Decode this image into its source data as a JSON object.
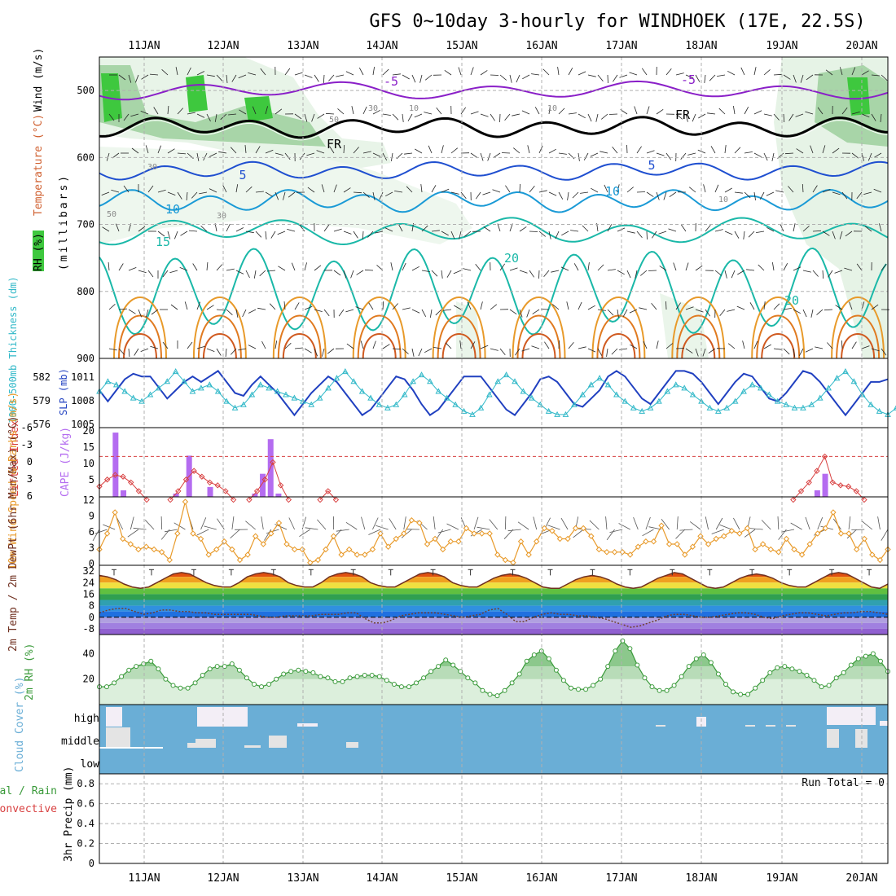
{
  "title": "GFS 0~10day 3-hourly for WINDHOEK (17E, 22.5S)",
  "dates": [
    "11JAN",
    "12JAN",
    "13JAN",
    "14JAN",
    "15JAN",
    "16JAN",
    "17JAN",
    "18JAN",
    "19JAN",
    "20JAN"
  ],
  "colors": {
    "grid": "#b0b0b0",
    "rh_green": "#3ec83e",
    "temp_purple": "#8a1fc8",
    "temp_blue": "#1f4fd0",
    "temp_lightblue": "#1a9ad6",
    "temp_teal": "#1ab8a8",
    "temp_orange": "#e89a2a",
    "cloud_blue": "#6aaed6",
    "cape_purple": "#b46cf0",
    "li_red": "#d84040",
    "wind_orange": "#e89a2a",
    "rh2m_green": "#3a9a3a"
  },
  "chart_data": [
    {
      "panel": "upper-air",
      "type": "contour",
      "ylabel_parts": [
        "RH (%)",
        "Temperature (°C)",
        "Wind (m/s)"
      ],
      "yunit": "(millibars)",
      "y_ticks": [
        500,
        600,
        700,
        800,
        900
      ],
      "ylim": [
        450,
        900
      ],
      "contour_labels": [
        "-5",
        "-5",
        "FR",
        "FR",
        "5",
        "5",
        "10",
        "10",
        "15",
        "20",
        "20",
        "30",
        "30",
        "30",
        "10",
        "10",
        "10",
        "50",
        "50"
      ]
    },
    {
      "panel": "thickness-slp",
      "type": "line",
      "ylabel_left": "1000-500mb Thickness (dm)",
      "ylabel_right": "SLP (mb)",
      "left_ticks": [
        "582",
        "579",
        "576"
      ],
      "right_ticks": [
        "1011",
        "1008",
        "1005"
      ],
      "series": [
        {
          "name": "SLP (mb)",
          "values": [
            1008.5,
            1006.5,
            1008.5,
            1010.5,
            1011.5,
            1011,
            1011,
            1009,
            1007,
            1008.5,
            1010,
            1011,
            1010,
            1011,
            1012,
            1010,
            1008,
            1007.5,
            1009.5,
            1011,
            1009.5,
            1008,
            1006,
            1004,
            1006,
            1008,
            1009.5,
            1011,
            1010,
            1008,
            1006,
            1004,
            1005,
            1007,
            1009,
            1011,
            1010.5,
            1008.5,
            1006,
            1004,
            1005,
            1007,
            1009,
            1011,
            1011,
            1011,
            1009,
            1007,
            1005,
            1004,
            1006,
            1008,
            1010.5,
            1011,
            1010,
            1008,
            1006,
            1005.5,
            1007,
            1008.5,
            1011,
            1012,
            1011,
            1009,
            1007,
            1006,
            1008,
            1010,
            1012,
            1012,
            1011.5,
            1010,
            1008,
            1006,
            1008,
            1010,
            1011.5,
            1011,
            1009,
            1007,
            1006.5,
            1008,
            1010,
            1012,
            1011.5,
            1010,
            1008,
            1006,
            1004,
            1006,
            1008,
            1010,
            1010,
            1010.5
          ]
        },
        {
          "name": "Thickness (dm)",
          "values": [
            579.5,
            581,
            580.5,
            579.5,
            578.5,
            578,
            579,
            580,
            581,
            582.5,
            581,
            579.5,
            580,
            580.5,
            579.5,
            578,
            577,
            577.5,
            579,
            580.5,
            580,
            579.5,
            579,
            578.5,
            578,
            577.5,
            578.5,
            580,
            581.5,
            582.5,
            581,
            579.5,
            578.5,
            577.5,
            577,
            577.5,
            579,
            581,
            582,
            581,
            579.5,
            578.5,
            577.5,
            576.5,
            576,
            577,
            579,
            581,
            582,
            581,
            579.5,
            578.5,
            577.5,
            576.5,
            576,
            576,
            577.5,
            579,
            580.5,
            581.5,
            580.5,
            579,
            578,
            577,
            576.5,
            577,
            578,
            579.5,
            580.5,
            580,
            579,
            578,
            577,
            576.5,
            577,
            578,
            579.5,
            580.5,
            580,
            579,
            578,
            577.5,
            577,
            577,
            577.5,
            578.5,
            580,
            581.5,
            582.5,
            581,
            579,
            577.5,
            576.5,
            576,
            577
          ]
        }
      ]
    },
    {
      "panel": "cape-li",
      "type": "bar",
      "ylabel_left": "Lifted Index",
      "ylabel_right": "CAPE (J/kg)",
      "li_ticks": [
        "-6",
        "-3",
        "0",
        "3",
        "6"
      ],
      "cape_ticks": [
        "20",
        "15",
        "10",
        "5"
      ],
      "cape_bars": [
        {
          "i": 6,
          "v": 19.5
        },
        {
          "i": 9,
          "v": 2
        },
        {
          "i": 29,
          "v": 1
        },
        {
          "i": 34,
          "v": 12.5
        },
        {
          "i": 42,
          "v": 3
        },
        {
          "i": 59,
          "v": 1
        },
        {
          "i": 62,
          "v": 7
        },
        {
          "i": 65,
          "v": 17.5
        },
        {
          "i": 68,
          "v": 1
        },
        {
          "i": 273,
          "v": 2
        },
        {
          "i": 276,
          "v": 7
        }
      ],
      "li_series": [
        {
          "i": 0,
          "v": 4.2
        },
        {
          "i": 3,
          "v": 3
        },
        {
          "i": 6,
          "v": 2.2
        },
        {
          "i": 9,
          "v": 2.5
        },
        {
          "i": 12,
          "v": 3.5
        },
        {
          "i": 15,
          "v": 5
        },
        {
          "i": 18,
          "v": 6.5
        },
        {
          "i": 27,
          "v": 6.5
        },
        {
          "i": 30,
          "v": 5
        },
        {
          "i": 33,
          "v": 3
        },
        {
          "i": 36,
          "v": 1.5
        },
        {
          "i": 39,
          "v": 2.5
        },
        {
          "i": 42,
          "v": 3.5
        },
        {
          "i": 45,
          "v": 4
        },
        {
          "i": 48,
          "v": 5
        },
        {
          "i": 51,
          "v": 6.5
        },
        {
          "i": 57,
          "v": 6.5
        },
        {
          "i": 60,
          "v": 5
        },
        {
          "i": 63,
          "v": 3
        },
        {
          "i": 66,
          "v": 0
        },
        {
          "i": 69,
          "v": 4
        },
        {
          "i": 72,
          "v": 6.5
        },
        {
          "i": 84,
          "v": 6.5
        },
        {
          "i": 87,
          "v": 5
        },
        {
          "i": 90,
          "v": 6.5
        },
        {
          "i": 264,
          "v": 6.5
        },
        {
          "i": 267,
          "v": 5
        },
        {
          "i": 270,
          "v": 3.5
        },
        {
          "i": 273,
          "v": 1.5
        },
        {
          "i": 276,
          "v": -1
        },
        {
          "i": 279,
          "v": 3.5
        },
        {
          "i": 282,
          "v": 4
        },
        {
          "i": 285,
          "v": 4.2
        },
        {
          "i": 288,
          "v": 5
        },
        {
          "i": 291,
          "v": 6.5
        }
      ]
    },
    {
      "panel": "wind-10m",
      "type": "line",
      "ylabel": "10m Wind Speed & Barbs (m/s)",
      "y_ticks": [
        "12",
        "9",
        "6",
        "3",
        "0"
      ],
      "ylim": [
        0,
        12
      ],
      "values": [
        3,
        6,
        10,
        5,
        4,
        3,
        3.5,
        3,
        2.5,
        1,
        6,
        12,
        6,
        5,
        2,
        3,
        4.5,
        3,
        1,
        2,
        5.5,
        4,
        6,
        8,
        4,
        3,
        3,
        0.5,
        1,
        3,
        5.5,
        2,
        3,
        2,
        2,
        3,
        6,
        3.5,
        5,
        6,
        8.5,
        8,
        4,
        5,
        3,
        4.5,
        4.5,
        7,
        6,
        6,
        6,
        2,
        1,
        0.5,
        4.5,
        2,
        4.5,
        7,
        6.5,
        5,
        5,
        7,
        7,
        5.5,
        3,
        2.5,
        2.5,
        2.5,
        2,
        3.5,
        4.5,
        4.5,
        7.5,
        4,
        4,
        2,
        3.5,
        5.5,
        4,
        5,
        5.5,
        6.5,
        6,
        7,
        3,
        4,
        3,
        2.5,
        5,
        3,
        2,
        4,
        6,
        7,
        10,
        6,
        6,
        3,
        5,
        2,
        1,
        3
      ]
    },
    {
      "panel": "temp-2m",
      "type": "area",
      "ylabel": "2m Temp / 2m DewPt (6hr Min/Max) (°C)",
      "y_ticks": [
        "32",
        "24",
        "16",
        "8",
        "0",
        "-8"
      ],
      "ylim": [
        -12,
        36
      ],
      "temp": [
        29,
        28,
        26,
        23,
        21,
        20,
        21,
        24,
        27,
        30,
        31,
        30,
        27,
        24,
        22,
        21,
        21,
        24,
        28,
        30,
        31,
        30,
        28,
        24,
        22,
        21,
        21,
        24,
        28,
        30,
        31,
        30,
        28,
        24,
        22,
        21,
        21,
        24,
        27,
        30,
        31,
        30,
        28,
        24,
        22,
        21,
        21,
        24,
        27,
        29,
        30,
        29,
        27,
        24,
        21,
        20,
        20,
        23,
        26,
        28,
        29,
        28,
        26,
        23,
        21,
        20,
        21,
        24,
        27,
        29,
        31,
        30,
        27,
        24,
        21,
        20,
        21,
        24,
        27,
        29,
        30,
        29,
        27,
        24,
        22,
        21,
        21,
        24,
        27,
        30,
        31,
        30,
        27,
        24,
        21,
        20,
        23
      ],
      "dewpt": [
        3,
        5,
        6,
        6,
        4,
        2,
        3,
        5,
        5,
        4,
        4,
        3,
        3,
        2,
        2,
        2,
        2,
        2,
        1,
        0,
        0,
        1,
        1,
        1,
        1,
        2,
        2,
        2,
        3,
        3,
        -1,
        -4,
        -4,
        -2,
        1,
        2,
        3,
        3,
        3,
        2,
        1,
        0,
        1,
        2,
        5,
        6,
        2,
        -3,
        -3,
        0,
        2,
        3,
        2,
        2,
        1,
        1,
        0,
        -1,
        -3,
        -5,
        -7,
        -6,
        -4,
        -2,
        1,
        2,
        2,
        1,
        0,
        0,
        1,
        2,
        3,
        3,
        2,
        0,
        -1,
        1,
        2,
        3,
        3,
        2,
        1,
        2,
        3,
        3,
        4,
        4,
        3,
        2
      ]
    },
    {
      "panel": "rh-2m",
      "type": "area",
      "ylabel": "2m RH (%)",
      "y_ticks": [
        "40",
        "20"
      ],
      "ylim": [
        0,
        55
      ],
      "values": [
        14,
        14,
        17,
        22,
        27,
        30,
        32,
        34,
        28,
        20,
        15,
        13,
        13,
        17,
        23,
        28,
        30,
        30,
        32,
        27,
        21,
        16,
        14,
        16,
        20,
        24,
        26,
        27,
        26,
        25,
        22,
        21,
        18,
        18,
        21,
        22,
        23,
        23,
        22,
        19,
        16,
        14,
        14,
        17,
        21,
        26,
        30,
        35,
        31,
        26,
        21,
        17,
        11,
        8,
        7,
        11,
        17,
        24,
        34,
        39,
        42,
        36,
        27,
        19,
        13,
        12,
        12,
        15,
        20,
        30,
        42,
        50,
        44,
        31,
        21,
        14,
        11,
        11,
        15,
        22,
        30,
        36,
        39,
        33,
        24,
        16,
        10,
        8,
        8,
        13,
        19,
        25,
        29,
        30,
        28,
        26,
        23,
        19,
        14,
        15,
        21,
        25,
        31,
        36,
        38,
        40,
        34,
        26
      ]
    },
    {
      "panel": "cloud-cover",
      "type": "heatmap",
      "ylabel": "Cloud Cover (%)",
      "levels": [
        "high",
        "middle",
        "low"
      ]
    },
    {
      "panel": "precip",
      "type": "bar",
      "ylabel": "3hr Precip (mm)",
      "legend": [
        "Total / Rain",
        "Convective"
      ],
      "y_ticks": [
        "0.8",
        "0.6",
        "0.4",
        "0.2",
        "0"
      ],
      "ylim": [
        0,
        0.9
      ],
      "run_total_label": "Run Total = 0",
      "values": []
    }
  ]
}
